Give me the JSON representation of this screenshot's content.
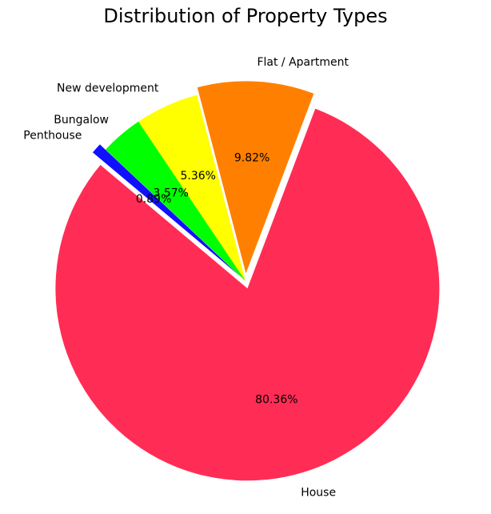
{
  "chart_data": {
    "type": "pie",
    "title": "Distribution of Property Types",
    "slices": [
      {
        "label": "House",
        "value": 80.36,
        "pct_label": "80.36%",
        "color": "#ff2d55",
        "exploded": true
      },
      {
        "label": "Flat / Apartment",
        "value": 9.82,
        "pct_label": "9.82%",
        "color": "#ff8000",
        "exploded": true
      },
      {
        "label": "New development",
        "value": 5.36,
        "pct_label": "5.36%",
        "color": "#ffff00",
        "exploded": false
      },
      {
        "label": "Bungalow",
        "value": 3.57,
        "pct_label": "3.57%",
        "color": "#00ff00",
        "exploded": false
      },
      {
        "label": "Penthouse",
        "value": 0.89,
        "pct_label": "0.89%",
        "color": "#1010ff",
        "exploded": true
      }
    ],
    "start_angle_deg": 140,
    "direction": "counterclockwise",
    "legend": "none"
  }
}
